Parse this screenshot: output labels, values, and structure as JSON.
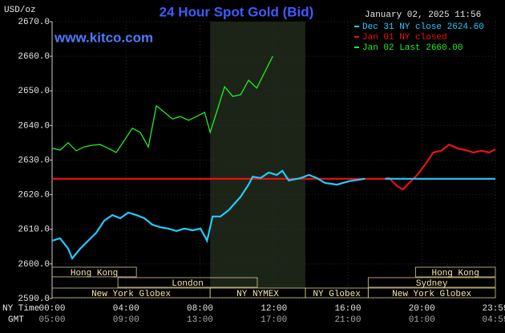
{
  "chart_data": {
    "type": "line",
    "title": "24 Hour Spot Gold (Bid)",
    "timestamp": "January 02, 2025 11:56",
    "site": "www.kitco.com",
    "y_label": "USD/oz",
    "x_label": "NY Time",
    "x2_label": "GMT",
    "xlim": [
      0,
      23.98
    ],
    "ylim": [
      2590,
      2670
    ],
    "grid": true,
    "xticks": [
      {
        "value": 0,
        "label": "00:00"
      },
      {
        "value": 4,
        "label": "04:00"
      },
      {
        "value": 8,
        "label": "08:00"
      },
      {
        "value": 12,
        "label": "12:00"
      },
      {
        "value": 16,
        "label": "16:00"
      },
      {
        "value": 20,
        "label": "20:00"
      },
      {
        "value": 23.98,
        "label": "23:59"
      }
    ],
    "x2ticks": [
      {
        "value": 0,
        "label": "05:00"
      },
      {
        "value": 4,
        "label": "09:00"
      },
      {
        "value": 8,
        "label": "13:00"
      },
      {
        "value": 12,
        "label": "17:00"
      },
      {
        "value": 16,
        "label": "21:00"
      },
      {
        "value": 20,
        "label": "01:00"
      },
      {
        "value": 23.98,
        "label": "04:59"
      }
    ],
    "yticks": [
      {
        "value": 2590,
        "label": "2590.0"
      },
      {
        "value": 2600,
        "label": "2600.0"
      },
      {
        "value": 2610,
        "label": "2610.0"
      },
      {
        "value": 2620,
        "label": "2620.0"
      },
      {
        "value": 2630,
        "label": "2630.0"
      },
      {
        "value": 2640,
        "label": "2640.0"
      },
      {
        "value": 2650,
        "label": "2650.0"
      },
      {
        "value": 2660,
        "label": "2660.0"
      },
      {
        "value": 2670,
        "label": "2670.0"
      }
    ],
    "series": [
      {
        "name": "Jan 02 Last 2660.00",
        "color": "#22ee22",
        "x": [
          0,
          0.43,
          0.87,
          1.3,
          1.74,
          2.17,
          2.6,
          3.04,
          3.47,
          3.91,
          4.34,
          4.77,
          5.21,
          5.64,
          6.08,
          6.51,
          6.94,
          7.38,
          7.81,
          8.25,
          8.55,
          8.9,
          9.33,
          9.77,
          10.2,
          10.63,
          11.07,
          11.5,
          11.94
        ],
        "values": [
          2633.4,
          2632.9,
          2635.0,
          2632.7,
          2633.8,
          2634.3,
          2634.5,
          2633.4,
          2632.2,
          2635.7,
          2639.2,
          2638.0,
          2633.8,
          2645.7,
          2643.8,
          2641.9,
          2642.6,
          2641.5,
          2642.6,
          2643.8,
          2638.0,
          2643.8,
          2651.2,
          2648.4,
          2648.9,
          2653.1,
          2650.8,
          2655.4,
          2660.0
        ]
      },
      {
        "name": "Jan 01 NY closed",
        "color": "#ee1111",
        "x": [
          0,
          18.01,
          18.23,
          18.66,
          18.97,
          19.31,
          19.75,
          20.18,
          20.62,
          21.05,
          21.48,
          21.92,
          22.35,
          22.79,
          23.22,
          23.65,
          23.98
        ],
        "values": [
          2624.6,
          2624.6,
          2624.8,
          2622.5,
          2621.5,
          2623.4,
          2625.7,
          2628.7,
          2632.2,
          2632.7,
          2634.5,
          2633.4,
          2632.9,
          2632.2,
          2632.7,
          2632.2,
          2633.1
        ]
      },
      {
        "name": "Dec 31 NY close 2624.60",
        "color": "#22ccff",
        "x": [
          0,
          0.43,
          0.87,
          1.09,
          1.52,
          1.95,
          2.39,
          2.82,
          3.26,
          3.69,
          4.12,
          4.56,
          4.99,
          5.43,
          5.86,
          6.29,
          6.73,
          7.16,
          7.6,
          8.03,
          8.38,
          8.68,
          9.11,
          9.55,
          10.2,
          10.63,
          10.85,
          11.28,
          11.72,
          12.15,
          12.46,
          12.8,
          13.45,
          13.89,
          14.32,
          14.76,
          15.41,
          16.06,
          16.93,
          17.5,
          18.01,
          23.98
        ],
        "values": [
          2606.7,
          2607.4,
          2604.4,
          2601.6,
          2604.4,
          2606.7,
          2609.0,
          2612.5,
          2614.1,
          2613.2,
          2614.8,
          2614.1,
          2613.2,
          2611.3,
          2610.6,
          2610.2,
          2609.5,
          2610.2,
          2609.7,
          2610.2,
          2606.7,
          2613.7,
          2613.7,
          2615.5,
          2619.4,
          2622.9,
          2625.2,
          2624.8,
          2626.4,
          2625.7,
          2626.9,
          2624.1,
          2624.8,
          2625.7,
          2624.8,
          2623.4,
          2622.9,
          2623.9,
          2624.6,
          null,
          2624.6,
          2624.6
        ]
      }
    ],
    "session_rows": [
      [
        {
          "label": "Hong Kong",
          "start": 0,
          "end": 4.56
        },
        {
          "label": "Hong Kong",
          "start": 19.66,
          "end": 23.98
        }
      ],
      [
        {
          "label": "London",
          "start": 3.56,
          "end": 11.1
        },
        {
          "label": "Sydney",
          "start": 17.1,
          "end": 23.98
        }
      ],
      [
        {
          "label": "New York Globex",
          "start": 0,
          "end": 8.55
        },
        {
          "label": "NY NYMEX",
          "start": 8.55,
          "end": 13.7,
          "shaded": true
        },
        {
          "label": "NY Globex",
          "start": 13.7,
          "end": 17.1
        },
        {
          "label": "New York Globex",
          "start": 17.1,
          "end": 23.98
        }
      ]
    ]
  }
}
